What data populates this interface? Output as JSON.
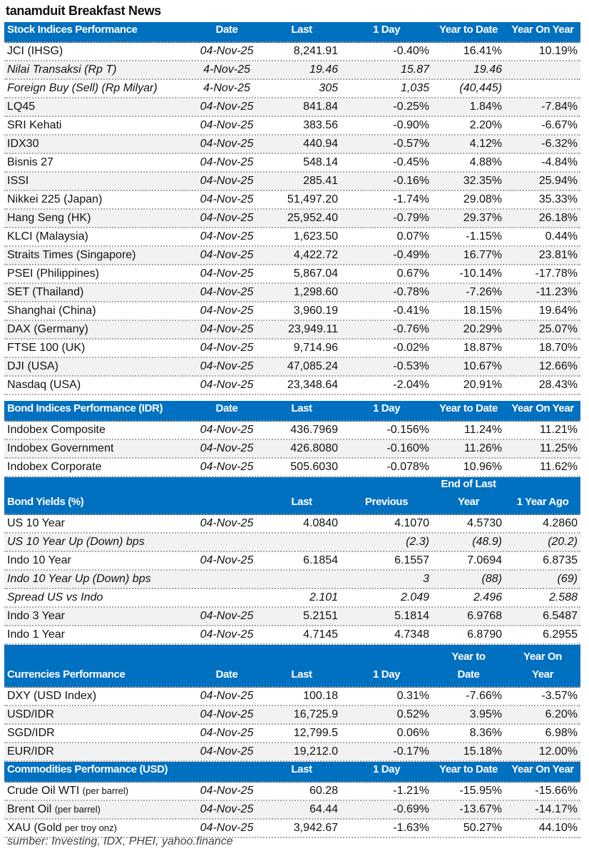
{
  "title": "tanamduit Breakfast News",
  "colors": {
    "header_bg": "#0070c0",
    "header_text": "#ffffff",
    "alt_row": "#f2f2f2"
  },
  "sections": [
    {
      "id": "stock-indices",
      "header": [
        "Stock Indices Performance",
        "Date",
        "Last",
        "1 Day",
        "Year to Date",
        "Year On Year"
      ],
      "header_lines": 1,
      "rows": [
        {
          "cells": [
            "JCI (IHSG)",
            "04-Nov-25",
            "8,241.91",
            "-0.40%",
            "16.41%",
            "10.19%"
          ]
        },
        {
          "italic": true,
          "cells": [
            "Nilai Transaksi (Rp T)",
            "4-Nov-25",
            "19.46",
            "15.87",
            "19.46",
            ""
          ]
        },
        {
          "italic": true,
          "cells": [
            "Foreign Buy (Sell) (Rp Milyar)",
            "4-Nov-25",
            "305",
            "1,035",
            "(40,445)",
            ""
          ]
        },
        {
          "cells": [
            "LQ45",
            "04-Nov-25",
            "841.84",
            "-0.25%",
            "1.84%",
            "-7.84%"
          ]
        },
        {
          "cells": [
            "SRI Kehati",
            "04-Nov-25",
            "383.56",
            "-0.90%",
            "2.20%",
            "-6.67%"
          ]
        },
        {
          "cells": [
            "IDX30",
            "04-Nov-25",
            "440.94",
            "-0.57%",
            "4.12%",
            "-6.32%"
          ]
        },
        {
          "cells": [
            "Bisnis 27",
            "04-Nov-25",
            "548.14",
            "-0.45%",
            "4.88%",
            "-4.84%"
          ]
        },
        {
          "cells": [
            "ISSI",
            "04-Nov-25",
            "285.41",
            "-0.16%",
            "32.35%",
            "25.94%"
          ]
        },
        {
          "cells": [
            "Nikkei 225 (Japan)",
            "04-Nov-25",
            "51,497.20",
            "-1.74%",
            "29.08%",
            "35.33%"
          ]
        },
        {
          "cells": [
            "Hang Seng (HK)",
            "04-Nov-25",
            "25,952.40",
            "-0.79%",
            "29.37%",
            "26.18%"
          ]
        },
        {
          "cells": [
            "KLCI (Malaysia)",
            "04-Nov-25",
            "1,623.50",
            "0.07%",
            "-1.15%",
            "0.44%"
          ]
        },
        {
          "cells": [
            "Straits Times (Singapore)",
            "04-Nov-25",
            "4,422.72",
            "-0.49%",
            "16.77%",
            "23.81%"
          ]
        },
        {
          "cells": [
            "PSEI (Philippines)",
            "04-Nov-25",
            "5,867.04",
            "0.67%",
            "-10.14%",
            "-17.78%"
          ]
        },
        {
          "cells": [
            "SET (Thailand)",
            "04-Nov-25",
            "1,298.60",
            "-0.78%",
            "-7.26%",
            "-11.23%"
          ]
        },
        {
          "cells": [
            "Shanghai (China)",
            "04-Nov-25",
            "3,960.19",
            "-0.41%",
            "18.15%",
            "19.64%"
          ]
        },
        {
          "cells": [
            "DAX (Germany)",
            "04-Nov-25",
            "23,949.11",
            "-0.76%",
            "20.29%",
            "25.07%"
          ]
        },
        {
          "cells": [
            "FTSE 100 (UK)",
            "04-Nov-25",
            "9,714.96",
            "-0.02%",
            "18.87%",
            "18.70%"
          ]
        },
        {
          "cells": [
            "DJI (USA)",
            "04-Nov-25",
            "47,085.24",
            "-0.53%",
            "10.67%",
            "12.66%"
          ]
        },
        {
          "cells": [
            "Nasdaq (USA)",
            "04-Nov-25",
            "23,348.64",
            "-2.04%",
            "20.91%",
            "28.43%"
          ]
        }
      ]
    },
    {
      "id": "bond-indices",
      "gap_before": true,
      "header": [
        "Bond Indices Performance (IDR)",
        "Date",
        "Last",
        "1 Day",
        "Year to Date",
        "Year On Year"
      ],
      "header_lines": 1,
      "rows": [
        {
          "cells": [
            "Indobex Composite",
            "04-Nov-25",
            "436.7969",
            "-0.156%",
            "11.24%",
            "11.21%"
          ]
        },
        {
          "cells": [
            "Indobex Government",
            "04-Nov-25",
            "426.8080",
            "-0.160%",
            "11.26%",
            "11.25%"
          ]
        },
        {
          "cells": [
            "Indobex Corporate",
            "04-Nov-25",
            "505.6030",
            "-0.078%",
            "10.96%",
            "11.62%"
          ]
        }
      ]
    },
    {
      "id": "bond-yields",
      "header": [
        "Bond Yields (%)",
        "",
        "Last",
        "Previous",
        "End of Last Year",
        "1 Year Ago"
      ],
      "header_lines": 2,
      "rows": [
        {
          "cells": [
            "US 10 Year",
            "04-Nov-25",
            "4.0840",
            "4.1070",
            "4.5730",
            "4.2860"
          ]
        },
        {
          "italic": true,
          "cells": [
            "US 10 Year Up (Down) bps",
            "",
            "",
            "(2.3)",
            "(48.9)",
            "(20.2)"
          ]
        },
        {
          "cells": [
            "Indo 10 Year",
            "04-Nov-25",
            "6.1854",
            "6.1557",
            "7.0694",
            "6.8735"
          ]
        },
        {
          "italic": true,
          "cells": [
            "Indo 10 Year Up (Down) bps",
            "",
            "",
            "3",
            "(88)",
            "(69)"
          ]
        },
        {
          "italic": true,
          "cells": [
            "Spread US vs Indo",
            "",
            "2.101",
            "2.049",
            "2.496",
            "2.588"
          ]
        },
        {
          "cells": [
            "Indo 3 Year",
            "04-Nov-25",
            "5.2151",
            "5.1814",
            "6.9768",
            "6.5487"
          ]
        },
        {
          "cells": [
            "Indo 1 Year",
            "04-Nov-25",
            "4.7145",
            "4.7348",
            "6.8790",
            "6.2955"
          ]
        }
      ]
    },
    {
      "id": "currencies",
      "header": [
        "Currencies Performance",
        "Date",
        "Last",
        "1 Day",
        "Year to Date",
        "Year On Year"
      ],
      "header_lines": 2,
      "rows": [
        {
          "cells": [
            "DXY (USD Index)",
            "04-Nov-25",
            "100.18",
            "0.31%",
            "-7.66%",
            "-3.57%"
          ]
        },
        {
          "cells": [
            "USD/IDR",
            "04-Nov-25",
            "16,725.9",
            "0.52%",
            "3.95%",
            "6.20%"
          ]
        },
        {
          "cells": [
            "SGD/IDR",
            "04-Nov-25",
            "12,799.5",
            "0.06%",
            "8.36%",
            "6.98%"
          ]
        },
        {
          "cells": [
            "EUR/IDR",
            "04-Nov-25",
            "19,212.0",
            "-0.17%",
            "15.18%",
            "12.00%"
          ]
        }
      ]
    },
    {
      "id": "commodities",
      "header": [
        "Commodities Performance (USD)",
        "",
        "Last",
        "1 Day",
        "Year to Date",
        "Year On Year"
      ],
      "header_lines": 1,
      "rows": [
        {
          "cells": [
            "Crude Oil WTI",
            "04-Nov-25",
            "60.28",
            "-1.21%",
            "-15.95%",
            "-15.66%"
          ],
          "suffix": "(per barrel)"
        },
        {
          "cells": [
            "Brent Oil",
            "04-Nov-25",
            "64.44",
            "-0.69%",
            "-13.67%",
            "-14.17%"
          ],
          "suffix": "(per barrel)"
        },
        {
          "cells": [
            "XAU (Gold",
            "04-Nov-25",
            "3,942.67",
            "-1.63%",
            "50.27%",
            "44.10%"
          ],
          "suffix": "per troy onz)"
        }
      ]
    }
  ],
  "source": "sumber: Investing, IDX, PHEI, yahoo.finance"
}
